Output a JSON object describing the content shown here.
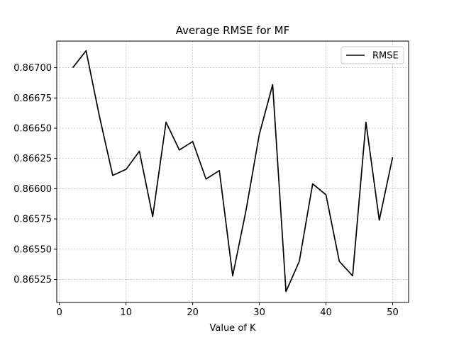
{
  "chart_data": {
    "type": "line",
    "title": "Average RMSE for MF",
    "xlabel": "Value of K",
    "ylabel": "",
    "xlim": [
      -0.4,
      52.4
    ],
    "ylim": [
      0.86506,
      0.86722
    ],
    "xticks": [
      0,
      10,
      20,
      30,
      40,
      50
    ],
    "xtick_labels": [
      "0",
      "10",
      "20",
      "30",
      "40",
      "50"
    ],
    "yticks": [
      0.86525,
      0.8655,
      0.86575,
      0.866,
      0.86625,
      0.8665,
      0.86675,
      0.867
    ],
    "ytick_labels": [
      "0.86525",
      "0.86550",
      "0.86575",
      "0.86600",
      "0.86625",
      "0.86650",
      "0.86675",
      "0.86700"
    ],
    "grid": true,
    "legend": {
      "position": "top-right",
      "entries": [
        "RMSE"
      ]
    },
    "series": [
      {
        "name": "RMSE",
        "color": "#000000",
        "x": [
          2,
          4,
          6,
          8,
          10,
          12,
          14,
          16,
          18,
          20,
          22,
          24,
          26,
          28,
          30,
          32,
          34,
          36,
          38,
          40,
          42,
          44,
          46,
          48,
          50
        ],
        "y": [
          0.867,
          0.86714,
          0.8666,
          0.86611,
          0.86616,
          0.86631,
          0.86577,
          0.86655,
          0.86632,
          0.86639,
          0.86608,
          0.86615,
          0.86528,
          0.86582,
          0.86645,
          0.86686,
          0.86515,
          0.8654,
          0.86604,
          0.86595,
          0.8654,
          0.86528,
          0.86655,
          0.86574,
          0.86626
        ]
      }
    ]
  }
}
